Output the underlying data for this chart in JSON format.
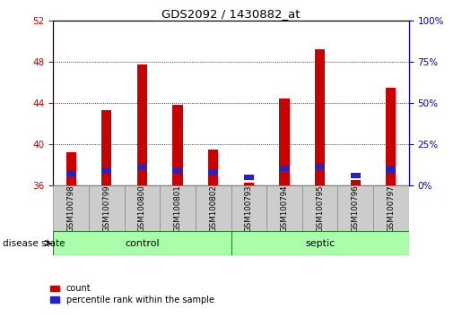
{
  "title": "GDS2092 / 1430882_at",
  "samples": [
    "GSM100798",
    "GSM100799",
    "GSM100800",
    "GSM100801",
    "GSM100802",
    "GSM100793",
    "GSM100794",
    "GSM100795",
    "GSM100796",
    "GSM100797"
  ],
  "count_values": [
    39.2,
    43.3,
    47.7,
    43.8,
    39.5,
    36.3,
    44.4,
    49.2,
    36.5,
    45.5
  ],
  "percentile_values": [
    36.85,
    37.1,
    37.55,
    37.1,
    36.95,
    36.5,
    37.4,
    37.55,
    36.7,
    37.25
  ],
  "percentile_heights": [
    0.55,
    0.55,
    0.55,
    0.55,
    0.55,
    0.55,
    0.55,
    0.55,
    0.55,
    0.55
  ],
  "base_value": 36.0,
  "ylim_left": [
    36,
    52
  ],
  "ylim_right": [
    0,
    100
  ],
  "yticks_left": [
    36,
    40,
    44,
    48,
    52
  ],
  "yticks_right": [
    0,
    25,
    50,
    75,
    100
  ],
  "count_color": "#CC0000",
  "percentile_color": "#2222CC",
  "control_label": "control",
  "septic_label": "septic",
  "disease_state_label": "disease state",
  "legend_count": "count",
  "legend_percentile": "percentile rank within the sample",
  "group_color_light": "#AAFFAA",
  "group_color_dark": "#44CC44",
  "group_edge_color": "#228822",
  "left_axis_color": "#CC0000",
  "right_axis_color": "#0000CC",
  "tick_label_bg": "#CCCCCC",
  "tick_label_edge": "#888888"
}
